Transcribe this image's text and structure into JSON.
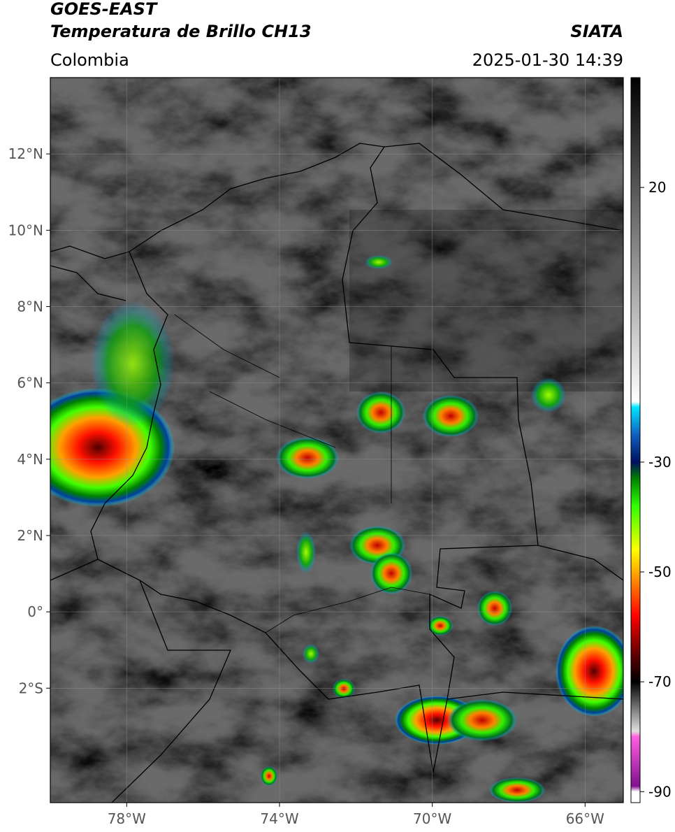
{
  "header": {
    "title": "GOES-EAST",
    "subtitle": "Temperatura de Brillo CH13",
    "region": "Colombia",
    "source": "SIATA",
    "timestamp": "2025-01-30 14:39"
  },
  "map": {
    "xlim": [
      -80,
      -65
    ],
    "ylim": [
      -5,
      14
    ],
    "xticks": [
      {
        "value": -78,
        "label": "78°W"
      },
      {
        "value": -74,
        "label": "74°W"
      },
      {
        "value": -70,
        "label": "70°W"
      },
      {
        "value": -66,
        "label": "66°W"
      }
    ],
    "yticks": [
      {
        "value": 12,
        "label": "12°N"
      },
      {
        "value": 10,
        "label": "10°N"
      },
      {
        "value": 8,
        "label": "8°N"
      },
      {
        "value": 6,
        "label": "6°N"
      },
      {
        "value": 4,
        "label": "4°N"
      },
      {
        "value": 2,
        "label": "2°N"
      },
      {
        "value": 0,
        "label": "0°"
      },
      {
        "value": -2,
        "label": "2°S"
      }
    ],
    "grid": true
  },
  "colorbar": {
    "lim": [
      -92,
      40
    ],
    "ticks": [
      20,
      -30,
      -50,
      -70,
      -90
    ],
    "stops": [
      {
        "value": 40,
        "color": "#000000"
      },
      {
        "value": -19,
        "color": "#ffffff"
      },
      {
        "value": -20,
        "color": "#00e5ff"
      },
      {
        "value": -25,
        "color": "#1060c0"
      },
      {
        "value": -30,
        "color": "#001060"
      },
      {
        "value": -33,
        "color": "#008000"
      },
      {
        "value": -38,
        "color": "#30ff00"
      },
      {
        "value": -46,
        "color": "#ffff00"
      },
      {
        "value": -52,
        "color": "#ff8000"
      },
      {
        "value": -58,
        "color": "#ff0000"
      },
      {
        "value": -65,
        "color": "#600000"
      },
      {
        "value": -70,
        "color": "#000000"
      },
      {
        "value": -79,
        "color": "#e0e0e0"
      },
      {
        "value": -80,
        "color": "#ff60e0"
      },
      {
        "value": -89,
        "color": "#801090"
      },
      {
        "value": -90,
        "color": "#ffffff"
      }
    ]
  }
}
